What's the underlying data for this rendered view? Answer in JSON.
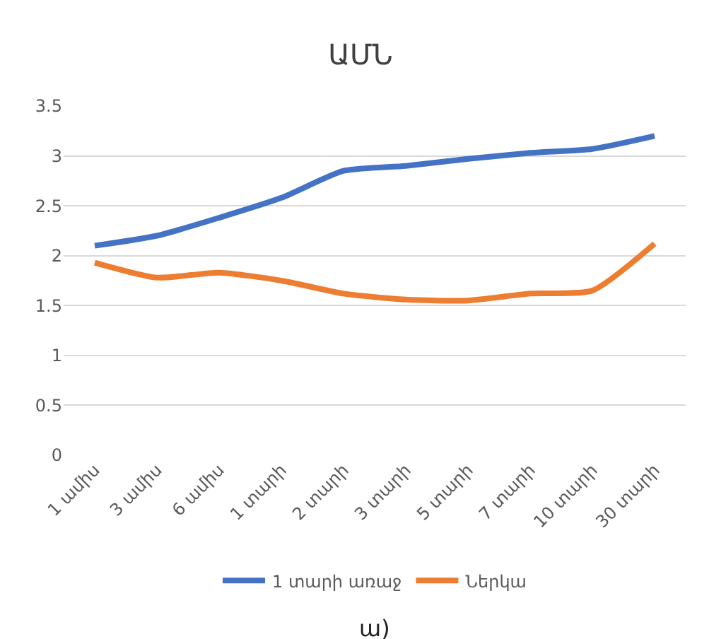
{
  "chart_data": {
    "type": "line",
    "title": "ԱՄՆ",
    "categories": [
      "1 ամիս",
      "3 ամիս",
      "6 ամիս",
      "1 տարի",
      "2 տարի",
      "3 տարի",
      "5 տարի",
      "7 տարի",
      "10 տարի",
      "30 տարի"
    ],
    "series": [
      {
        "name": "1 տարի առաջ",
        "color": "#4472c4",
        "values": [
          2.1,
          2.2,
          2.38,
          2.58,
          2.85,
          2.9,
          2.97,
          3.03,
          3.07,
          3.2
        ]
      },
      {
        "name": "Ներկա",
        "color": "#ed7d31",
        "values": [
          1.93,
          1.78,
          1.83,
          1.75,
          1.62,
          1.56,
          1.55,
          1.62,
          1.65,
          2.12
        ]
      }
    ],
    "ylim": [
      0,
      3.5
    ],
    "yticks": [
      0,
      0.5,
      1,
      1.5,
      2,
      2.5,
      3,
      3.5
    ],
    "grid": "y",
    "legend": "bottom",
    "marker": "none",
    "line_style": "solid",
    "annotations": [
      "ա)"
    ]
  }
}
